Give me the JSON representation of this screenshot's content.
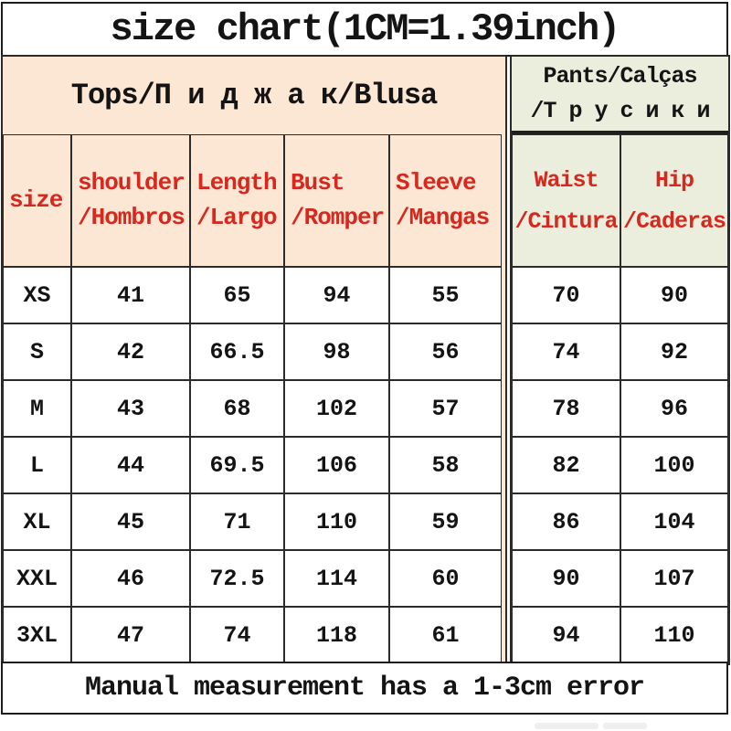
{
  "title": "size chart(1CM=1.39inch)",
  "footer": "Manual measurement has a 1-3cm error",
  "groups": {
    "tops_label": "Tops/П и д ж а к/Blusa",
    "pants_line1": "Pants/Calças",
    "pants_line2": "/Т р у с и к и"
  },
  "headers": {
    "size": "size",
    "shoulder": [
      "shoulder",
      "/Hombros"
    ],
    "length": [
      "Length",
      "/Largo"
    ],
    "bust": [
      "Bust",
      "/Romper"
    ],
    "sleeve": [
      "Sleeve",
      "/Mangas"
    ],
    "waist": [
      "Waist",
      "/Cintura"
    ],
    "hip": [
      "Hip",
      "/Caderas"
    ]
  },
  "colors": {
    "tops_bg": "#fce6d4",
    "pants_bg": "#ebeedd",
    "header_text": "#d6281e",
    "grid_line": "#2b2b2b"
  },
  "chart_data": {
    "type": "table",
    "title": "size chart(1CM=1.39inch)",
    "group_headers": [
      "Tops/Пиджак/Blusa",
      "Pants/Calças/Трусики"
    ],
    "columns": [
      "size",
      "shoulder/Hombros",
      "Length/Largo",
      "Bust/Romper",
      "Sleeve/Mangas",
      "Waist/Cintura",
      "Hip/Caderas"
    ],
    "rows": [
      [
        "XS",
        "41",
        "65",
        "94",
        "55",
        "70",
        "90"
      ],
      [
        "S",
        "42",
        "66.5",
        "98",
        "56",
        "74",
        "92"
      ],
      [
        "M",
        "43",
        "68",
        "102",
        "57",
        "78",
        "96"
      ],
      [
        "L",
        "44",
        "69.5",
        "106",
        "58",
        "82",
        "100"
      ],
      [
        "XL",
        "45",
        "71",
        "110",
        "59",
        "86",
        "104"
      ],
      [
        "XXL",
        "46",
        "72.5",
        "114",
        "60",
        "90",
        "107"
      ],
      [
        "3XL",
        "47",
        "74",
        "118",
        "61",
        "94",
        "110"
      ]
    ],
    "footnote": "Manual measurement has a 1-3cm error"
  }
}
